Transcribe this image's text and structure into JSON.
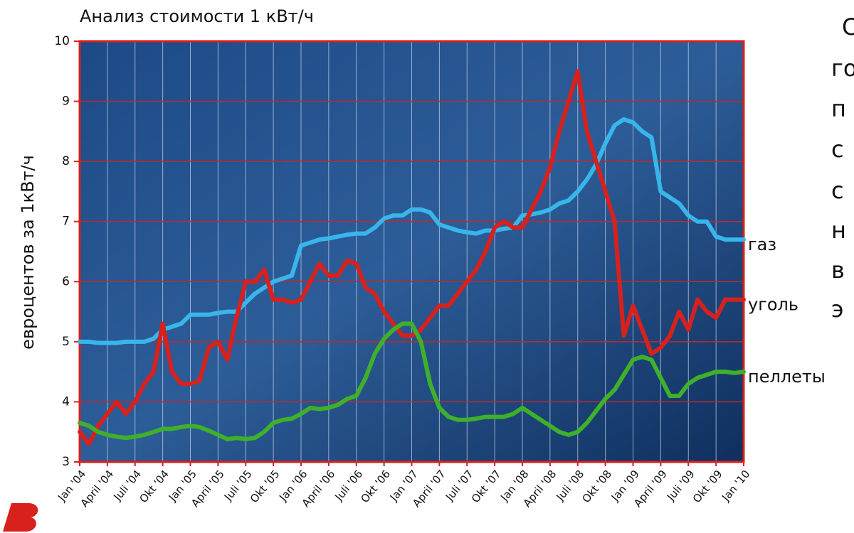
{
  "chart_data": {
    "type": "line",
    "title": "Анализ стоимости 1 кВт/ч",
    "y_label": "евроцентов за 1кВт/ч",
    "ylim": [
      3,
      10
    ],
    "yticks": [
      3,
      4,
      5,
      6,
      7,
      8,
      9,
      10
    ],
    "xlim": [
      0,
      72
    ],
    "xticks": [
      {
        "value": 0,
        "label": "Jan '04"
      },
      {
        "value": 3,
        "label": "April '04"
      },
      {
        "value": 6,
        "label": "Juli '04"
      },
      {
        "value": 9,
        "label": "Okt '04"
      },
      {
        "value": 12,
        "label": "Jan '05"
      },
      {
        "value": 15,
        "label": "April '05"
      },
      {
        "value": 18,
        "label": "Juli '05"
      },
      {
        "value": 21,
        "label": "Okt '05"
      },
      {
        "value": 24,
        "label": "Jan '06"
      },
      {
        "value": 27,
        "label": "April '06"
      },
      {
        "value": 30,
        "label": "Juli '06"
      },
      {
        "value": 33,
        "label": "Okt '06"
      },
      {
        "value": 36,
        "label": "Jan '07"
      },
      {
        "value": 39,
        "label": "April '07"
      },
      {
        "value": 42,
        "label": "Juli '07"
      },
      {
        "value": 45,
        "label": "Okt '07"
      },
      {
        "value": 48,
        "label": "Jan '08"
      },
      {
        "value": 51,
        "label": "April '08"
      },
      {
        "value": 54,
        "label": "Juli '08"
      },
      {
        "value": 57,
        "label": "Okt '08"
      },
      {
        "value": 60,
        "label": "Jan '09"
      },
      {
        "value": 63,
        "label": "April '09"
      },
      {
        "value": 66,
        "label": "Juli '09"
      },
      {
        "value": 69,
        "label": "Okt '09"
      },
      {
        "value": 72,
        "label": "Jan '10"
      }
    ],
    "grid": true,
    "x": [
      0,
      1,
      2,
      3,
      4,
      5,
      6,
      7,
      8,
      9,
      10,
      11,
      12,
      13,
      14,
      15,
      16,
      17,
      18,
      19,
      20,
      21,
      22,
      23,
      24,
      25,
      26,
      27,
      28,
      29,
      30,
      31,
      32,
      33,
      34,
      35,
      36,
      37,
      38,
      39,
      40,
      41,
      42,
      43,
      44,
      45,
      46,
      47,
      48,
      49,
      50,
      51,
      52,
      53,
      54,
      55,
      56,
      57,
      58,
      59,
      60,
      61,
      62,
      63,
      64,
      65,
      66,
      67,
      68,
      69,
      70,
      71,
      72
    ],
    "series": [
      {
        "name": "газ",
        "color": "#38b6ec",
        "values": [
          5.0,
          5.0,
          4.98,
          4.98,
          4.98,
          5.0,
          5.0,
          5.0,
          5.05,
          5.2,
          5.25,
          5.3,
          5.45,
          5.45,
          5.45,
          5.48,
          5.5,
          5.5,
          5.65,
          5.8,
          5.9,
          6.0,
          6.05,
          6.1,
          6.6,
          6.65,
          6.7,
          6.72,
          6.75,
          6.78,
          6.8,
          6.8,
          6.9,
          7.05,
          7.1,
          7.1,
          7.2,
          7.2,
          7.15,
          6.95,
          6.9,
          6.85,
          6.82,
          6.8,
          6.85,
          6.85,
          6.88,
          6.9,
          7.1,
          7.12,
          7.15,
          7.2,
          7.3,
          7.35,
          7.5,
          7.7,
          7.95,
          8.3,
          8.6,
          8.7,
          8.65,
          8.5,
          8.4,
          7.5,
          7.4,
          7.3,
          7.1,
          7.0,
          7.0,
          6.75,
          6.7,
          6.7,
          6.7
        ]
      },
      {
        "name": "уголь",
        "color": "#d8201c",
        "values": [
          3.5,
          3.3,
          3.6,
          3.8,
          4.0,
          3.8,
          4.0,
          4.3,
          4.5,
          5.3,
          4.5,
          4.3,
          4.3,
          4.35,
          4.9,
          5.0,
          4.7,
          5.4,
          6.0,
          6.0,
          6.2,
          5.7,
          5.7,
          5.65,
          5.7,
          6.0,
          6.3,
          6.1,
          6.1,
          6.35,
          6.3,
          5.9,
          5.8,
          5.5,
          5.3,
          5.1,
          5.1,
          5.2,
          5.4,
          5.6,
          5.6,
          5.8,
          6.0,
          6.2,
          6.5,
          6.9,
          7.0,
          6.9,
          6.9,
          7.2,
          7.5,
          7.9,
          8.5,
          9.0,
          9.5,
          8.5,
          8.0,
          7.5,
          7.0,
          5.1,
          5.6,
          5.2,
          4.8,
          4.9,
          5.1,
          5.5,
          5.2,
          5.7,
          5.5,
          5.4,
          5.7,
          5.7,
          5.7
        ]
      },
      {
        "name": "пеллеты",
        "color": "#3fb02a",
        "values": [
          3.65,
          3.6,
          3.5,
          3.45,
          3.42,
          3.4,
          3.42,
          3.45,
          3.5,
          3.55,
          3.55,
          3.58,
          3.6,
          3.58,
          3.52,
          3.45,
          3.38,
          3.4,
          3.38,
          3.4,
          3.5,
          3.65,
          3.7,
          3.72,
          3.8,
          3.9,
          3.88,
          3.9,
          3.95,
          4.05,
          4.1,
          4.4,
          4.8,
          5.05,
          5.2,
          5.3,
          5.3,
          5.0,
          4.3,
          3.9,
          3.75,
          3.7,
          3.7,
          3.72,
          3.75,
          3.75,
          3.75,
          3.8,
          3.9,
          3.8,
          3.7,
          3.6,
          3.5,
          3.45,
          3.5,
          3.65,
          3.85,
          4.05,
          4.2,
          4.45,
          4.7,
          4.75,
          4.7,
          4.4,
          4.1,
          4.1,
          4.3,
          4.4,
          4.45,
          4.5,
          4.5,
          4.48,
          4.5
        ]
      }
    ]
  },
  "side_text": [
    "С",
    "го",
    "п",
    "с",
    "с",
    "н",
    "в",
    "э"
  ]
}
